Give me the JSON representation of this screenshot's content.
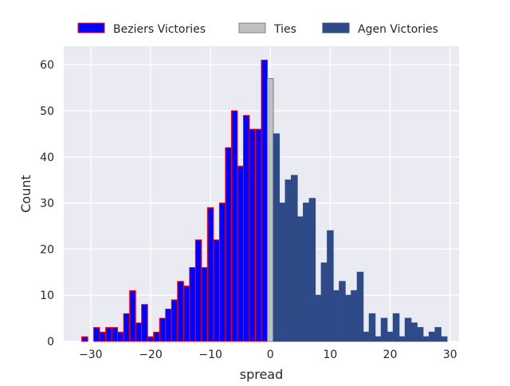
{
  "chart_data": {
    "type": "bar",
    "xlabel": "spread",
    "ylabel": "Count",
    "xlim": [
      -34.5,
      31.5
    ],
    "ylim": [
      0,
      64
    ],
    "grid": true,
    "legend_position": "top",
    "x_ticks": [
      -30,
      -20,
      -10,
      0,
      10,
      20,
      30
    ],
    "y_ticks": [
      0,
      10,
      20,
      30,
      40,
      50,
      60
    ],
    "x_tick_labels": [
      "−30",
      "−20",
      "−10",
      "0",
      "10",
      "20",
      "30"
    ],
    "y_tick_labels": [
      "0",
      "10",
      "20",
      "30",
      "40",
      "50",
      "60"
    ],
    "series": [
      {
        "name": "Beziers Victories",
        "color": "#0000ff",
        "edgecolor": "#ff0000",
        "x": [
          -31,
          -29,
          -28,
          -27,
          -26,
          -25,
          -24,
          -23,
          -22,
          -21,
          -20,
          -19,
          -18,
          -17,
          -16,
          -15,
          -14,
          -13,
          -12,
          -11,
          -10,
          -9,
          -8,
          -7,
          -6,
          -5,
          -4,
          -3,
          -2,
          -1
        ],
        "values": [
          1,
          3,
          2,
          3,
          3,
          2,
          6,
          11,
          4,
          8,
          1,
          2,
          5,
          7,
          9,
          13,
          12,
          16,
          22,
          16,
          29,
          22,
          30,
          42,
          50,
          38,
          49,
          46,
          46,
          61
        ]
      },
      {
        "name": "Ties",
        "color": "#c0c0c0",
        "edgecolor": "#7f7f7f",
        "x": [
          0
        ],
        "values": [
          57
        ]
      },
      {
        "name": "Agen Victories",
        "color": "#2e4a87",
        "edgecolor": "#2e4a87",
        "x": [
          1,
          2,
          3,
          4,
          5,
          6,
          7,
          8,
          9,
          10,
          11,
          12,
          13,
          14,
          15,
          16,
          17,
          18,
          19,
          20,
          21,
          22,
          23,
          24,
          25,
          26,
          27,
          28,
          29
        ],
        "values": [
          45,
          30,
          35,
          36,
          27,
          30,
          31,
          10,
          17,
          24,
          11,
          13,
          10,
          11,
          15,
          2,
          6,
          1,
          5,
          2,
          6,
          1,
          5,
          4,
          3,
          1,
          2,
          3,
          1
        ]
      }
    ]
  }
}
